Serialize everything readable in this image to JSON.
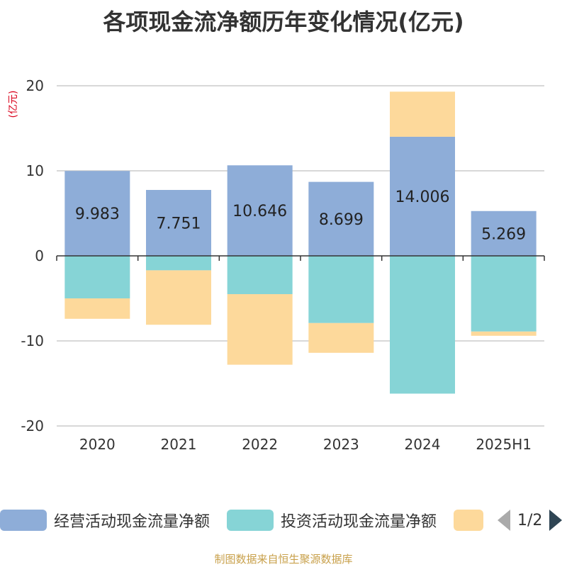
{
  "title": "各项现金流净额历年变化情况(亿元)",
  "unit_label": "(亿元)",
  "source": "制图数据来自恒生聚源数据库",
  "legend_page": "1/2",
  "legend_icons": {
    "prev": "arrow-left-icon",
    "next": "arrow-right-icon"
  },
  "chart_data": {
    "type": "bar",
    "stacked": true,
    "categories": [
      "2020",
      "2021",
      "2022",
      "2023",
      "2024",
      "2025H1"
    ],
    "ylim": [
      -20,
      20
    ],
    "yticks": [
      20,
      10,
      0,
      -10,
      -20
    ],
    "grid": true,
    "legend_position": "bottom",
    "series": [
      {
        "name": "经营活动现金流量净额",
        "color": "#8eadd8",
        "values": [
          9.983,
          7.751,
          10.646,
          8.699,
          14.006,
          5.269
        ],
        "labels": [
          "9.983",
          "7.751",
          "10.646",
          "8.699",
          "14.006",
          "5.269"
        ]
      },
      {
        "name": "投资活动现金流量净额",
        "color": "#86d4d6",
        "values": [
          -5.0,
          -1.7,
          -4.5,
          -7.9,
          -16.2,
          -8.9
        ]
      },
      {
        "name": "",
        "color": "#fdd99b",
        "values": [
          -2.4,
          -6.4,
          -8.3,
          -3.5,
          5.3,
          -0.5
        ]
      }
    ]
  }
}
